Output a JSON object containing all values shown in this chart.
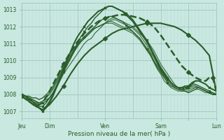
{
  "bg_color": "#c8e8e0",
  "grid_color_major": "#9abfb8",
  "grid_color_minor": "#b8d8d2",
  "line_color": "#2a5c2a",
  "xlabel": "Pression niveau de la mer( hPa )",
  "yticks": [
    1007,
    1008,
    1009,
    1010,
    1011,
    1012,
    1013
  ],
  "ylim": [
    1006.6,
    1013.4
  ],
  "xlim": [
    0,
    168
  ],
  "xtick_positions": [
    0,
    24,
    72,
    120,
    144,
    168
  ],
  "xtick_labels": [
    "Jeu",
    "Dim",
    "Ven",
    "Sam",
    "",
    "Lun"
  ],
  "series": [
    {
      "x": [
        0,
        3,
        6,
        9,
        12,
        15,
        18,
        21,
        24,
        27,
        30,
        33,
        36,
        39,
        42,
        45,
        48,
        51,
        54,
        57,
        60,
        63,
        66,
        69,
        72,
        75,
        78,
        81,
        84,
        87,
        90,
        93,
        96,
        99,
        102,
        105,
        108,
        111,
        114,
        117,
        120,
        123,
        126,
        129,
        132,
        135,
        138,
        141,
        144,
        147,
        150,
        153,
        156,
        159,
        162,
        165,
        168
      ],
      "y": [
        1008.0,
        1007.9,
        1007.8,
        1007.7,
        1007.6,
        1007.5,
        1007.6,
        1007.7,
        1007.8,
        1008.1,
        1008.4,
        1008.8,
        1009.2,
        1009.5,
        1009.8,
        1010.1,
        1010.4,
        1010.7,
        1011.0,
        1011.2,
        1011.3,
        1011.6,
        1011.8,
        1012.0,
        1012.2,
        1012.4,
        1012.5,
        1012.5,
        1012.4,
        1012.3,
        1012.2,
        1012.1,
        1012.0,
        1011.8,
        1011.6,
        1011.4,
        1011.2,
        1010.9,
        1010.6,
        1010.2,
        1009.8,
        1009.5,
        1009.2,
        1008.9,
        1008.6,
        1008.4,
        1008.3,
        1008.2,
        1008.1,
        1008.2,
        1008.3,
        1008.4,
        1008.3,
        1008.2,
        1008.1,
        1008.0,
        1008.1
      ],
      "lw": 0.8,
      "marker": null,
      "dashed": false,
      "alpha": 0.9
    },
    {
      "x": [
        0,
        3,
        6,
        9,
        12,
        15,
        18,
        21,
        24,
        27,
        30,
        33,
        36,
        39,
        42,
        45,
        48,
        51,
        54,
        57,
        60,
        63,
        66,
        69,
        72,
        75,
        78,
        81,
        84,
        87,
        90,
        93,
        96,
        99,
        102,
        105,
        108,
        111,
        114,
        117,
        120,
        123,
        126,
        129,
        132,
        135,
        138,
        141,
        144,
        147,
        150,
        153,
        156,
        159,
        162,
        165,
        168
      ],
      "y": [
        1008.0,
        1007.9,
        1007.8,
        1007.7,
        1007.6,
        1007.5,
        1007.6,
        1007.8,
        1008.0,
        1008.3,
        1008.7,
        1009.1,
        1009.5,
        1009.9,
        1010.2,
        1010.5,
        1010.8,
        1011.1,
        1011.3,
        1011.5,
        1011.7,
        1011.9,
        1012.0,
        1012.1,
        1012.2,
        1012.3,
        1012.4,
        1012.4,
        1012.3,
        1012.2,
        1012.1,
        1012.0,
        1011.9,
        1011.7,
        1011.5,
        1011.2,
        1010.9,
        1010.5,
        1010.2,
        1009.8,
        1009.4,
        1009.1,
        1008.8,
        1008.6,
        1008.4,
        1008.3,
        1008.2,
        1008.2,
        1008.1,
        1008.2,
        1008.3,
        1008.3,
        1008.2,
        1008.1,
        1008.1,
        1008.0,
        1008.0
      ],
      "lw": 0.8,
      "marker": null,
      "dashed": false,
      "alpha": 0.9
    },
    {
      "x": [
        0,
        3,
        6,
        9,
        12,
        15,
        18,
        21,
        24,
        27,
        30,
        33,
        36,
        39,
        42,
        45,
        48,
        51,
        54,
        57,
        60,
        63,
        66,
        69,
        72,
        75,
        78,
        81,
        84,
        87,
        90,
        93,
        96,
        99,
        102,
        105,
        108,
        111,
        114,
        117,
        120,
        123,
        126,
        129,
        132,
        135,
        138,
        141,
        144,
        147,
        150,
        153,
        156,
        159,
        162,
        165,
        168
      ],
      "y": [
        1008.0,
        1007.9,
        1007.9,
        1007.8,
        1007.8,
        1007.7,
        1007.8,
        1007.9,
        1008.1,
        1008.4,
        1008.8,
        1009.2,
        1009.6,
        1010.0,
        1010.3,
        1010.6,
        1010.9,
        1011.1,
        1011.3,
        1011.5,
        1011.7,
        1011.9,
        1012.0,
        1012.1,
        1012.2,
        1012.3,
        1012.3,
        1012.2,
        1012.1,
        1012.0,
        1011.9,
        1011.8,
        1011.7,
        1011.5,
        1011.3,
        1011.0,
        1010.7,
        1010.4,
        1010.0,
        1009.7,
        1009.4,
        1009.1,
        1008.9,
        1008.7,
        1008.5,
        1008.4,
        1008.3,
        1008.3,
        1008.3,
        1008.4,
        1008.4,
        1008.4,
        1008.3,
        1008.2,
        1008.1,
        1008.0,
        1008.0
      ],
      "lw": 0.8,
      "marker": null,
      "dashed": false,
      "alpha": 0.9
    },
    {
      "x": [
        0,
        3,
        6,
        9,
        12,
        15,
        18,
        21,
        24,
        27,
        30,
        33,
        36,
        39,
        42,
        45,
        48,
        51,
        54,
        57,
        60,
        63,
        66,
        69,
        72,
        75,
        78,
        81,
        84,
        87,
        90,
        93,
        96,
        99,
        102,
        105,
        108,
        111,
        114,
        117,
        120,
        123,
        126,
        129,
        132,
        135,
        138,
        141,
        144,
        147,
        150,
        153,
        156,
        159,
        162,
        165,
        168
      ],
      "y": [
        1008.0,
        1007.9,
        1007.9,
        1007.8,
        1007.8,
        1007.7,
        1007.8,
        1008.0,
        1008.2,
        1008.5,
        1008.9,
        1009.3,
        1009.7,
        1010.1,
        1010.4,
        1010.7,
        1011.0,
        1011.2,
        1011.4,
        1011.6,
        1011.8,
        1011.9,
        1012.0,
        1012.1,
        1012.2,
        1012.2,
        1012.2,
        1012.1,
        1012.0,
        1011.9,
        1011.8,
        1011.7,
        1011.6,
        1011.4,
        1011.2,
        1010.9,
        1010.6,
        1010.3,
        1009.9,
        1009.5,
        1009.2,
        1008.8,
        1008.6,
        1008.4,
        1008.3,
        1008.2,
        1008.2,
        1008.2,
        1008.2,
        1008.3,
        1008.4,
        1008.4,
        1008.3,
        1008.2,
        1008.1,
        1008.1,
        1008.0
      ],
      "lw": 0.8,
      "marker": null,
      "dashed": false,
      "alpha": 0.9
    },
    {
      "x": [
        0,
        3,
        6,
        9,
        12,
        15,
        18,
        21,
        24,
        27,
        30,
        33,
        36,
        39,
        42,
        45,
        48,
        51,
        54,
        57,
        60,
        63,
        66,
        69,
        72,
        75,
        78,
        81,
        84,
        87,
        90,
        93,
        96,
        99,
        102,
        105,
        108,
        111,
        114,
        117,
        120,
        123,
        126,
        129,
        132,
        135,
        138,
        141,
        144,
        147,
        150,
        153,
        156,
        159,
        162,
        165,
        168
      ],
      "y": [
        1008.0,
        1007.9,
        1007.8,
        1007.7,
        1007.6,
        1007.4,
        1007.5,
        1007.6,
        1007.8,
        1008.1,
        1008.5,
        1008.9,
        1009.3,
        1009.7,
        1010.1,
        1010.5,
        1010.9,
        1011.2,
        1011.4,
        1011.6,
        1011.8,
        1012.0,
        1012.2,
        1012.4,
        1012.5,
        1012.6,
        1012.6,
        1012.5,
        1012.4,
        1012.3,
        1012.1,
        1011.9,
        1011.7,
        1011.5,
        1011.3,
        1011.0,
        1010.7,
        1010.4,
        1010.0,
        1009.6,
        1009.3,
        1009.0,
        1008.7,
        1008.5,
        1008.4,
        1008.3,
        1008.3,
        1008.3,
        1008.4,
        1008.5,
        1008.5,
        1008.4,
        1008.3,
        1008.2,
        1008.1,
        1008.0,
        1008.0
      ],
      "lw": 1.0,
      "marker": "x",
      "dashed": false,
      "alpha": 1.0
    },
    {
      "x": [
        0,
        3,
        6,
        9,
        12,
        15,
        18,
        21,
        24,
        27,
        30,
        33,
        36,
        39,
        42,
        45,
        48,
        51,
        54,
        57,
        60,
        63,
        66,
        69,
        72,
        75,
        78,
        81,
        84,
        87,
        90,
        93,
        96,
        99,
        102,
        105,
        108,
        111,
        114,
        117,
        120,
        123,
        126,
        129,
        132,
        135,
        138,
        141,
        144,
        147,
        150,
        153,
        156,
        159,
        162,
        165,
        168
      ],
      "y": [
        1008.0,
        1007.9,
        1007.8,
        1007.6,
        1007.5,
        1007.3,
        1007.3,
        1007.5,
        1007.8,
        1008.1,
        1008.5,
        1008.9,
        1009.4,
        1009.8,
        1010.2,
        1010.6,
        1011.0,
        1011.4,
        1011.7,
        1012.0,
        1012.2,
        1012.5,
        1012.7,
        1012.9,
        1013.1,
        1013.2,
        1013.2,
        1013.1,
        1013.0,
        1012.9,
        1012.7,
        1012.5,
        1012.3,
        1012.0,
        1011.7,
        1011.4,
        1011.1,
        1010.7,
        1010.3,
        1009.9,
        1009.5,
        1009.2,
        1008.9,
        1008.7,
        1008.5,
        1008.4,
        1008.4,
        1008.4,
        1008.5,
        1008.6,
        1008.6,
        1008.5,
        1008.4,
        1008.3,
        1008.2,
        1008.1,
        1008.0
      ],
      "lw": 1.0,
      "marker": "x",
      "dashed": false,
      "alpha": 1.0
    },
    {
      "x": [
        0,
        3,
        6,
        9,
        12,
        15,
        18,
        21,
        24,
        27,
        30,
        33,
        36,
        39,
        42,
        45,
        48,
        51,
        54,
        57,
        60,
        63,
        66,
        69,
        72,
        75,
        78,
        81,
        84,
        87,
        90,
        93,
        96,
        99,
        102,
        105,
        108,
        111,
        114,
        117,
        120,
        123,
        126,
        129,
        132,
        135,
        138,
        141,
        144,
        147,
        150,
        153,
        156,
        159,
        162,
        165,
        168
      ],
      "y": [
        1008.0,
        1007.9,
        1007.7,
        1007.6,
        1007.4,
        1007.2,
        1007.1,
        1007.3,
        1007.6,
        1008.0,
        1008.5,
        1009.0,
        1009.5,
        1010.0,
        1010.5,
        1011.0,
        1011.4,
        1011.7,
        1012.0,
        1012.3,
        1012.5,
        1012.7,
        1012.9,
        1013.0,
        1013.1,
        1013.2,
        1013.2,
        1013.1,
        1013.0,
        1012.9,
        1012.7,
        1012.5,
        1012.3,
        1012.0,
        1011.7,
        1011.4,
        1011.1,
        1010.7,
        1010.3,
        1009.9,
        1009.5,
        1009.2,
        1008.9,
        1008.7,
        1008.5,
        1008.4,
        1008.4,
        1008.5,
        1008.5,
        1008.7,
        1008.8,
        1008.8,
        1008.7,
        1008.6,
        1008.4,
        1008.3,
        1008.2
      ],
      "lw": 1.2,
      "marker": "x",
      "dashed": false,
      "alpha": 1.0
    },
    {
      "x": [
        0,
        3,
        6,
        9,
        12,
        15,
        18,
        21,
        24,
        27,
        30,
        33,
        36,
        39,
        42,
        45,
        48,
        51,
        54,
        57,
        60,
        63,
        66,
        69,
        72,
        75,
        78,
        81,
        84,
        87,
        90,
        93,
        96,
        99,
        102,
        105,
        108,
        111,
        114,
        117,
        120,
        123,
        126,
        129,
        132,
        135,
        138,
        141,
        144,
        147,
        150,
        153,
        156,
        159,
        162,
        165,
        168
      ],
      "y": [
        1008.0,
        1007.9,
        1007.7,
        1007.6,
        1007.4,
        1007.2,
        1007.0,
        1007.2,
        1007.5,
        1007.9,
        1008.4,
        1008.9,
        1009.5,
        1010.0,
        1010.5,
        1011.0,
        1011.4,
        1011.7,
        1012.0,
        1012.3,
        1012.5,
        1012.7,
        1012.9,
        1013.0,
        1013.1,
        1013.2,
        1013.2,
        1013.1,
        1013.0,
        1012.9,
        1012.8,
        1012.6,
        1012.4,
        1012.1,
        1011.8,
        1011.5,
        1011.2,
        1010.8,
        1010.4,
        1010.0,
        1009.6,
        1009.3,
        1009.0,
        1008.7,
        1008.5,
        1008.4,
        1008.3,
        1008.4,
        1008.4,
        1008.6,
        1008.8,
        1008.8,
        1008.7,
        1008.6,
        1008.4,
        1008.3,
        1008.2
      ],
      "lw": 1.2,
      "marker": "x",
      "dashed": false,
      "alpha": 1.0
    },
    {
      "x": [
        0,
        6,
        12,
        18,
        24,
        30,
        36,
        42,
        48,
        54,
        60,
        66,
        72,
        78,
        84,
        90,
        96,
        102,
        108,
        114,
        120,
        126,
        132,
        138,
        144,
        150,
        156,
        162,
        168
      ],
      "y": [
        1007.9,
        1007.6,
        1007.3,
        1007.1,
        1007.4,
        1007.9,
        1008.5,
        1009.2,
        1009.8,
        1010.3,
        1010.7,
        1011.0,
        1011.3,
        1011.6,
        1011.8,
        1011.9,
        1012.0,
        1012.1,
        1012.2,
        1012.2,
        1012.2,
        1012.1,
        1012.0,
        1011.8,
        1011.5,
        1011.2,
        1010.8,
        1010.3,
        1008.2
      ],
      "lw": 1.5,
      "marker": "D",
      "dashed": false,
      "alpha": 1.0
    },
    {
      "x": [
        0,
        6,
        12,
        18,
        24,
        30,
        36,
        42,
        48,
        54,
        60,
        66,
        72,
        78,
        84,
        90,
        96,
        102,
        108,
        114,
        120,
        126,
        132,
        138,
        144,
        150,
        153,
        156,
        159,
        162,
        165,
        168
      ],
      "y": [
        1007.9,
        1007.6,
        1007.3,
        1007.5,
        1008.2,
        1009.0,
        1009.8,
        1010.5,
        1011.1,
        1011.6,
        1012.0,
        1012.3,
        1012.5,
        1012.6,
        1012.7,
        1012.7,
        1012.6,
        1012.5,
        1012.3,
        1012.0,
        1011.5,
        1010.9,
        1010.3,
        1009.7,
        1009.3,
        1009.0,
        1008.9,
        1008.8,
        1008.8,
        1009.0,
        1009.0,
        1008.2
      ],
      "lw": 1.8,
      "marker": "D",
      "dashed": true,
      "alpha": 1.0
    }
  ]
}
